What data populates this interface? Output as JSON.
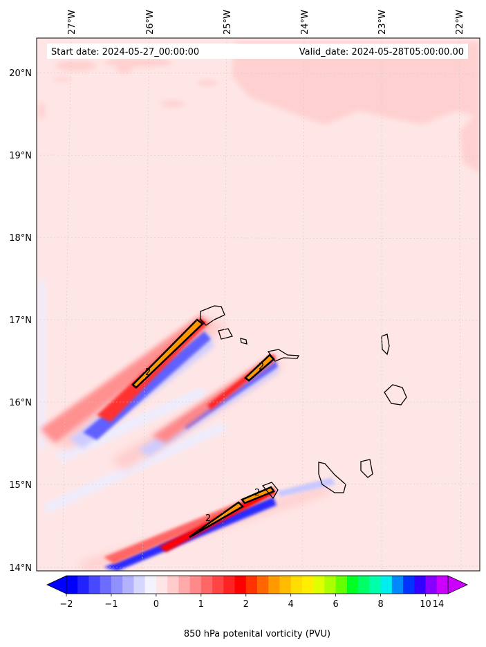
{
  "chart_data": {
    "type": "heatmap",
    "title": "",
    "start_date_text": "Start date: 2024-05-27_00:00:00",
    "valid_date_text": "Valid_date: 2024-05-28T05:00:00.00",
    "colorbar_label": "850 hPa potenital vorticity (PVU)",
    "lon_range": [
      -27.35,
      -21.75
    ],
    "lat_range": [
      13.95,
      20.45
    ],
    "lon_ticks": [
      -27,
      -26,
      -25,
      -24,
      -23,
      -22
    ],
    "lon_tick_labels": [
      "27°W",
      "26°W",
      "25°W",
      "24°W",
      "23°W",
      "22°W"
    ],
    "lat_ticks": [
      14,
      15,
      16,
      17,
      18,
      19,
      20
    ],
    "lat_tick_labels": [
      "14°N",
      "15°N",
      "16°N",
      "17°N",
      "18°N",
      "19°N",
      "20°N"
    ],
    "colorbar_ticks": [
      -2,
      -1,
      0,
      1,
      2,
      4,
      6,
      8,
      10,
      14
    ],
    "colorbar_tick_labels": [
      "−2",
      "−1",
      "0",
      "1",
      "2",
      "4",
      "6",
      "8",
      "10",
      "14"
    ],
    "colorbar_colors": [
      "#0000ff",
      "#2222ff",
      "#4848ff",
      "#6c6cff",
      "#9090ff",
      "#b2b2ff",
      "#d6d6ff",
      "#f3f3ff",
      "#ffe6e6",
      "#ffcccc",
      "#ffaaaa",
      "#ff8888",
      "#ff6666",
      "#ff4444",
      "#ff2222",
      "#ff0000",
      "#ff3300",
      "#ff6600",
      "#ff9900",
      "#ffbb00",
      "#ffdd00",
      "#ffee00",
      "#ddff00",
      "#aaff00",
      "#66ff00",
      "#00ff22",
      "#00ff66",
      "#00ffaa",
      "#00eeee",
      "#0088ff",
      "#0033ff",
      "#3300ff",
      "#8800ff",
      "#cc00ff"
    ],
    "background_value": 0.1,
    "contour_level_label": "2",
    "features": [
      {
        "name": "northern-streak",
        "from": [
          -27.3,
          15.6
        ],
        "to": [
          -24.9,
          17.0
        ],
        "peak_pv": 2.5
      },
      {
        "name": "middle-streak",
        "from": [
          -26.4,
          15.35
        ],
        "to": [
          -23.8,
          16.5
        ],
        "peak_pv": 2.3
      },
      {
        "name": "southern-streak",
        "from": [
          -26.0,
          13.95
        ],
        "to": [
          -23.7,
          14.95
        ],
        "peak_pv": 2.6
      }
    ]
  }
}
